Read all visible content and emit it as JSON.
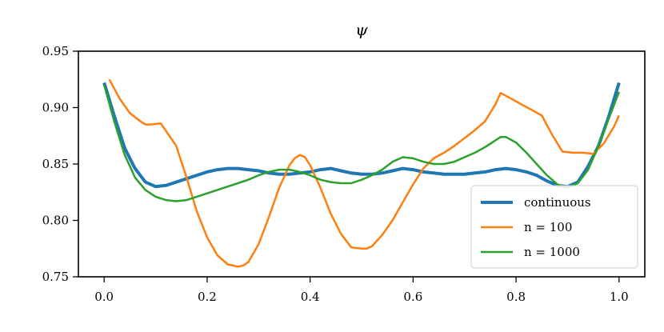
{
  "chart_data": {
    "type": "line",
    "title": "ψ",
    "xlabel": "",
    "ylabel": "",
    "xlim": [
      -0.05,
      1.05
    ],
    "ylim": [
      0.75,
      0.95
    ],
    "xticks": [
      0.0,
      0.2,
      0.4,
      0.6,
      0.8,
      1.0
    ],
    "xtick_labels": [
      "0.0",
      "0.2",
      "0.4",
      "0.6",
      "0.8",
      "1.0"
    ],
    "yticks": [
      0.75,
      0.8,
      0.85,
      0.9,
      0.95
    ],
    "ytick_labels": [
      "0.75",
      "0.80",
      "0.85",
      "0.90",
      "0.95"
    ],
    "grid": false,
    "legend_position": "lower-right",
    "series": [
      {
        "name": "continuous",
        "color": "#1f77b4",
        "x": [
          0.0,
          0.02,
          0.04,
          0.06,
          0.08,
          0.1,
          0.12,
          0.14,
          0.16,
          0.18,
          0.2,
          0.22,
          0.24,
          0.26,
          0.28,
          0.3,
          0.32,
          0.34,
          0.36,
          0.38,
          0.4,
          0.42,
          0.44,
          0.46,
          0.48,
          0.5,
          0.52,
          0.54,
          0.56,
          0.58,
          0.6,
          0.62,
          0.64,
          0.66,
          0.68,
          0.7,
          0.72,
          0.74,
          0.76,
          0.78,
          0.8,
          0.82,
          0.84,
          0.86,
          0.88,
          0.9,
          0.92,
          0.94,
          0.96,
          0.98,
          1.0
        ],
        "y": [
          0.922,
          0.892,
          0.864,
          0.846,
          0.834,
          0.83,
          0.831,
          0.834,
          0.837,
          0.84,
          0.843,
          0.845,
          0.846,
          0.846,
          0.845,
          0.844,
          0.842,
          0.841,
          0.841,
          0.842,
          0.843,
          0.845,
          0.846,
          0.844,
          0.842,
          0.841,
          0.841,
          0.842,
          0.844,
          0.846,
          0.845,
          0.843,
          0.842,
          0.841,
          0.841,
          0.841,
          0.842,
          0.843,
          0.845,
          0.846,
          0.845,
          0.843,
          0.84,
          0.835,
          0.831,
          0.83,
          0.834,
          0.848,
          0.866,
          0.892,
          0.922
        ]
      },
      {
        "name": "n = 100",
        "color": "#ff7f0e",
        "x": [
          0.01,
          0.03,
          0.05,
          0.07,
          0.08,
          0.09,
          0.11,
          0.14,
          0.16,
          0.18,
          0.2,
          0.22,
          0.24,
          0.26,
          0.27,
          0.28,
          0.3,
          0.32,
          0.34,
          0.36,
          0.37,
          0.38,
          0.39,
          0.4,
          0.42,
          0.44,
          0.46,
          0.48,
          0.5,
          0.51,
          0.52,
          0.54,
          0.56,
          0.58,
          0.6,
          0.62,
          0.64,
          0.66,
          0.68,
          0.7,
          0.72,
          0.74,
          0.76,
          0.77,
          0.79,
          0.81,
          0.83,
          0.85,
          0.87,
          0.89,
          0.91,
          0.93,
          0.95,
          0.97,
          0.99,
          1.0
        ],
        "y": [
          0.925,
          0.908,
          0.895,
          0.888,
          0.885,
          0.885,
          0.886,
          0.866,
          0.838,
          0.808,
          0.785,
          0.769,
          0.761,
          0.759,
          0.76,
          0.763,
          0.779,
          0.803,
          0.829,
          0.849,
          0.855,
          0.858,
          0.856,
          0.849,
          0.829,
          0.806,
          0.788,
          0.776,
          0.775,
          0.775,
          0.777,
          0.787,
          0.8,
          0.816,
          0.832,
          0.846,
          0.855,
          0.86,
          0.866,
          0.873,
          0.88,
          0.888,
          0.903,
          0.913,
          0.908,
          0.903,
          0.898,
          0.893,
          0.876,
          0.861,
          0.86,
          0.86,
          0.859,
          0.868,
          0.883,
          0.893
        ]
      },
      {
        "name": "n = 1000",
        "color": "#2ca02c",
        "x": [
          0.0,
          0.02,
          0.04,
          0.06,
          0.08,
          0.1,
          0.12,
          0.14,
          0.16,
          0.18,
          0.2,
          0.22,
          0.24,
          0.26,
          0.28,
          0.3,
          0.32,
          0.34,
          0.36,
          0.38,
          0.4,
          0.42,
          0.44,
          0.46,
          0.48,
          0.5,
          0.52,
          0.54,
          0.56,
          0.58,
          0.6,
          0.62,
          0.64,
          0.66,
          0.68,
          0.7,
          0.72,
          0.74,
          0.76,
          0.77,
          0.78,
          0.8,
          0.82,
          0.84,
          0.86,
          0.88,
          0.9,
          0.92,
          0.94,
          0.96,
          0.98,
          1.0
        ],
        "y": [
          0.92,
          0.887,
          0.858,
          0.838,
          0.827,
          0.821,
          0.818,
          0.817,
          0.818,
          0.821,
          0.824,
          0.827,
          0.83,
          0.833,
          0.836,
          0.84,
          0.843,
          0.845,
          0.845,
          0.843,
          0.84,
          0.836,
          0.834,
          0.833,
          0.833,
          0.836,
          0.84,
          0.845,
          0.852,
          0.856,
          0.855,
          0.852,
          0.85,
          0.85,
          0.852,
          0.856,
          0.86,
          0.865,
          0.871,
          0.874,
          0.874,
          0.869,
          0.86,
          0.85,
          0.84,
          0.832,
          0.829,
          0.833,
          0.845,
          0.866,
          0.89,
          0.914
        ]
      }
    ]
  }
}
